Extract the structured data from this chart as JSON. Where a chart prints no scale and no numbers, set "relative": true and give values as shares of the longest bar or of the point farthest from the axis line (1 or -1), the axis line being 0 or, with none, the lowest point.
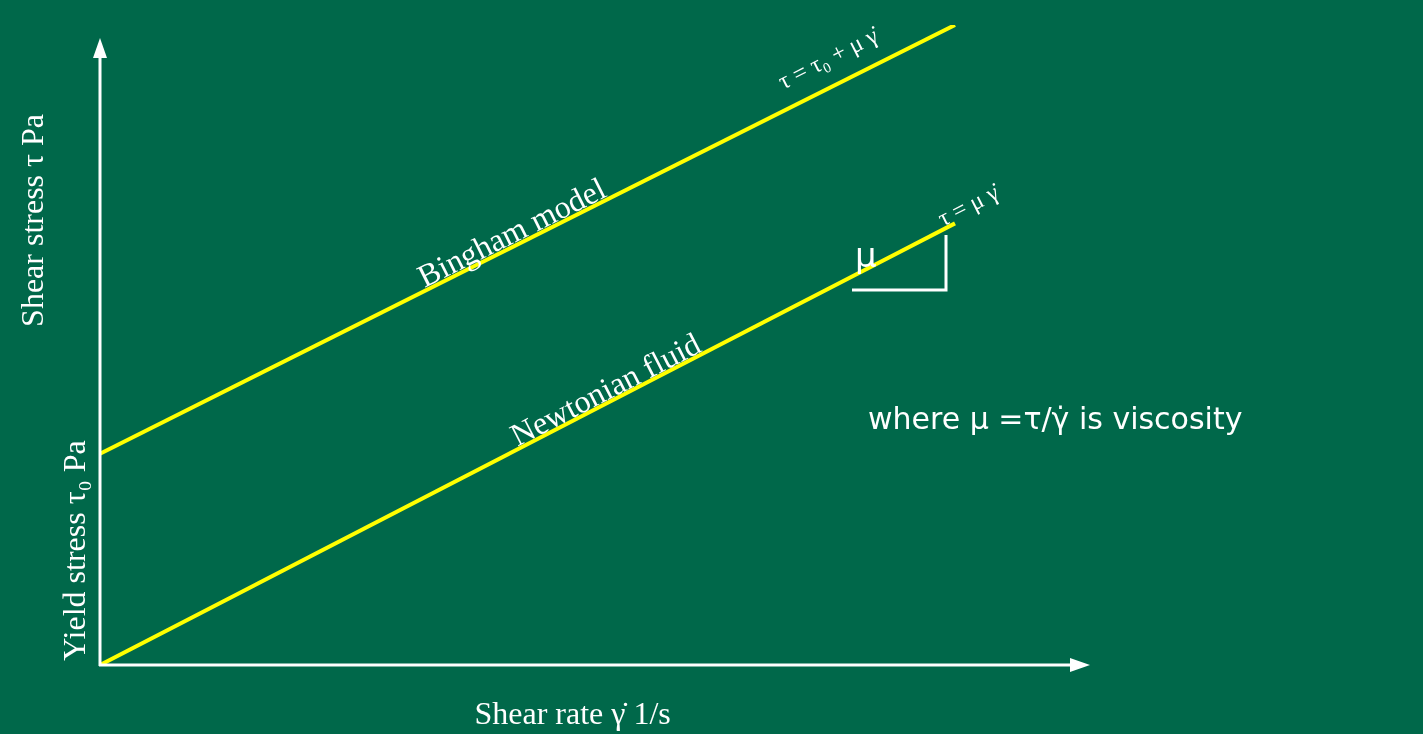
{
  "chart_data": {
    "type": "line",
    "relative": true,
    "xlabel": "Shear rate  γ̇  1/s",
    "ylabel": "Shear stress  τ  Pa",
    "categories": [
      null,
      null
    ],
    "legend": false,
    "marker": "none",
    "line_style": "solid",
    "series": [
      {
        "name": "Bingham model",
        "color": "#ffff00",
        "values": [
          0.33,
          1
        ]
      },
      {
        "name": "Newtonian fluid",
        "color": "#ffff00",
        "values": [
          0,
          0.69
        ]
      }
    ],
    "annotations": [
      "Yield stress  τ₀  Pa",
      "τ = τ₀ + μ γ̇",
      "τ = μ γ̇",
      "μ",
      "where μ =τ/γ̇  is viscosity"
    ]
  }
}
